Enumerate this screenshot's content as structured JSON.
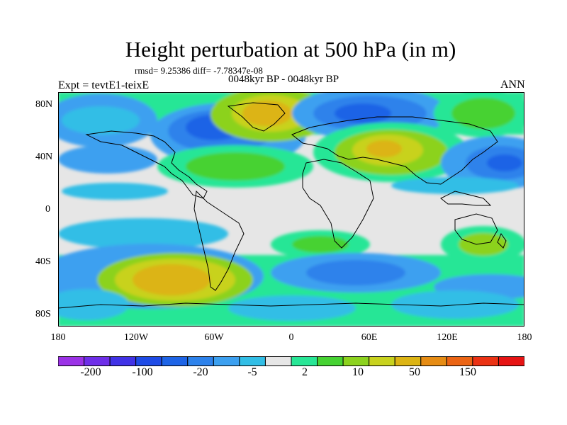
{
  "title": "Height perturbation at 500 hPa (in m)",
  "stats_line": "rmsd= 9.25386 diff= -7.78347e-08",
  "period_label": "0048kyr BP - 0048kyr BP",
  "experiment_label": "Expt = tevtE1-teixE",
  "season_label": "ANN",
  "map": {
    "projection": "cylindrical equidistant",
    "lat_labels": [
      "80N",
      "40N",
      "0",
      "40S",
      "80S"
    ],
    "lon_labels": [
      "180",
      "120W",
      "60W",
      "0",
      "60E",
      "120E",
      "180"
    ],
    "background_color": "#e6e6e6",
    "coastline_color": "#000000"
  },
  "colorbar": {
    "colors": [
      "#9b32e6",
      "#6e2ee8",
      "#4132e6",
      "#1e4be6",
      "#1e64e6",
      "#2d82eb",
      "#3ca0f0",
      "#32bee6",
      "#e6e6e6",
      "#28e696",
      "#46d232",
      "#8cd21e",
      "#c8d21e",
      "#dcb414",
      "#e68c14",
      "#eb6414",
      "#eb3214",
      "#e61414"
    ],
    "tick_labels": [
      "-200",
      "-100",
      "-20",
      "-5",
      "2",
      "10",
      "50",
      "150"
    ]
  }
}
